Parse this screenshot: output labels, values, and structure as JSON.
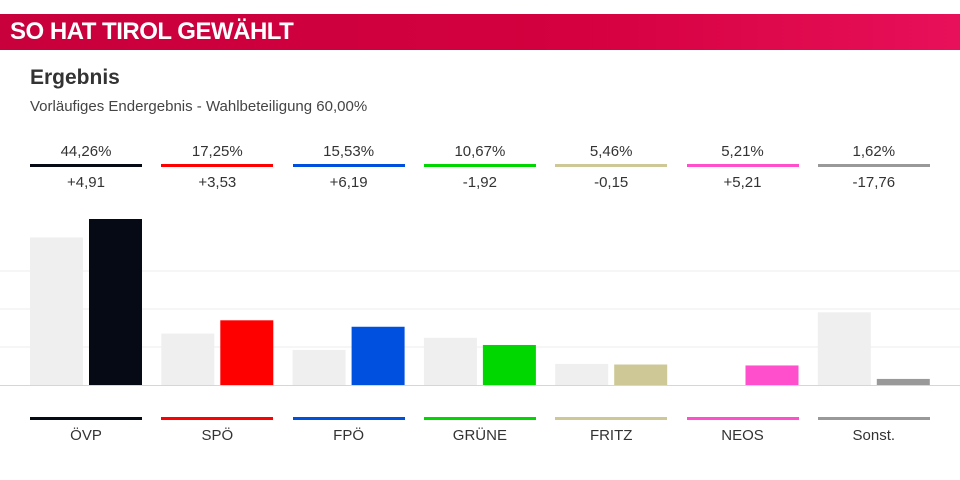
{
  "banner": {
    "title": "SO HAT TIROL GEWÄHLT"
  },
  "header": {
    "title": "Ergebnis",
    "subtitle": "Vorläufiges Endergebnis - Wahlbeteiligung 60,00%"
  },
  "chart_data": {
    "type": "bar",
    "categories": [
      "ÖVP",
      "SPÖ",
      "FPÖ",
      "GRÜNE",
      "FRITZ",
      "NEOS",
      "Sonst."
    ],
    "series": [
      {
        "values": [
          39.35,
          13.72,
          9.34,
          12.59,
          5.61,
          0,
          19.38
        ]
      },
      {
        "values": [
          44.26,
          17.25,
          15.53,
          10.67,
          5.46,
          5.21,
          1.62
        ]
      }
    ],
    "percent_labels": [
      "44,26%",
      "17,25%",
      "15,53%",
      "10,67%",
      "5,46%",
      "5,21%",
      "1,62%"
    ],
    "change_labels": [
      "+4,91",
      "+3,53",
      "+6,19",
      "-1,92",
      "-0,15",
      "+5,21",
      "-17,76"
    ],
    "colors": [
      "#050a14",
      "#ff0000",
      "#0050e0",
      "#00d700",
      "#cdc896",
      "#ff4fcd",
      "#999999"
    ],
    "previous_color": "#efefef",
    "ylim": [
      0,
      44.26
    ],
    "grid": true
  }
}
